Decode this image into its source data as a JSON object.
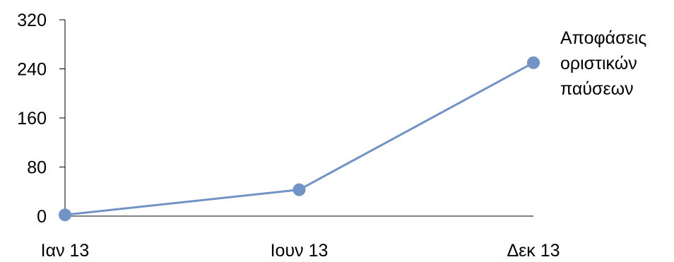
{
  "chart_data": {
    "type": "line",
    "title": "",
    "xlabel": "",
    "ylabel": "",
    "categories": [
      "Ιαν 13",
      "Ιουν 13",
      "Δεκ 13"
    ],
    "series": [
      {
        "name": "Αποφάσεις οριστικών παύσεων",
        "name_lines": [
          "Αποφάσεις",
          "οριστικών",
          "παύσεων"
        ],
        "values": [
          2,
          43,
          250
        ],
        "color": "#7193c5",
        "marker": "circle"
      }
    ],
    "ylim": [
      0,
      320
    ],
    "yticks": [
      0,
      80,
      160,
      240,
      320
    ],
    "grid": false,
    "legend": "right"
  }
}
